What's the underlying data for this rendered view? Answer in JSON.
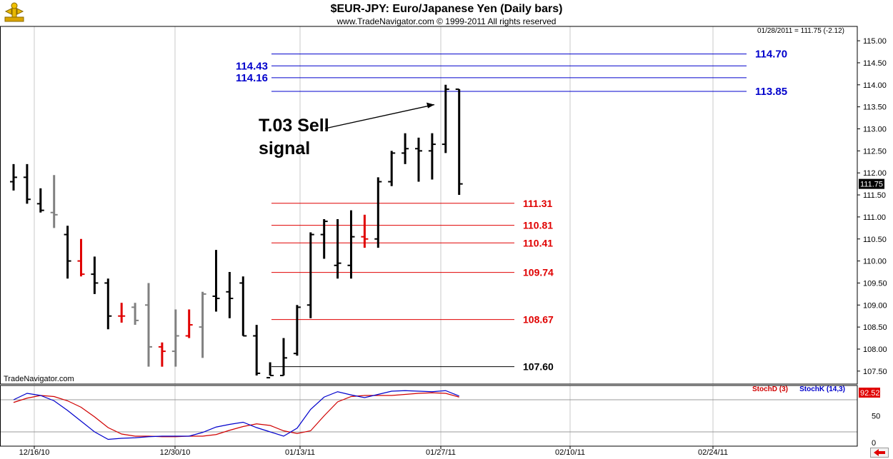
{
  "header": {
    "title": "$EUR-JPY:  Euro/Japanese Yen  (Daily bars)",
    "subtitle": "www.TradeNavigator.com © 1999-2011 All rights reserved",
    "quote": "01/28/2011 = 111.75 (-2.12)",
    "watermark": "TradeNavigator.com"
  },
  "colors": {
    "up_bar": "#000000",
    "down_bar": "#808080",
    "highlight_bar": "#e00000",
    "blue_level": "#0000cc",
    "red_level": "#e00000",
    "stoch_d": "#d00000",
    "stoch_k": "#0000cc"
  },
  "chart_data": {
    "type": "ohlc",
    "ylim": [
      107.35,
      115.1
    ],
    "yticks": [
      "107.50",
      "108.00",
      "108.50",
      "109.00",
      "109.50",
      "110.00",
      "110.50",
      "111.00",
      "111.50",
      "112.00",
      "112.50",
      "113.00",
      "113.50",
      "114.00",
      "114.50",
      "115.00"
    ],
    "xticks": [
      "12/16/10",
      "12/30/10",
      "01/13/11",
      "01/27/11",
      "02/10/11",
      "02/24/11"
    ],
    "last_price_label": "111.75",
    "bars": [
      {
        "o": 111.8,
        "h": 112.2,
        "l": 111.6,
        "c": 111.9,
        "color": "black"
      },
      {
        "o": 111.9,
        "h": 112.2,
        "l": 111.3,
        "c": 111.4,
        "color": "black"
      },
      {
        "o": 111.3,
        "h": 111.65,
        "l": 111.1,
        "c": 111.15,
        "color": "black"
      },
      {
        "o": 111.1,
        "h": 111.95,
        "l": 110.75,
        "c": 111.05,
        "color": "gray"
      },
      {
        "o": 110.6,
        "h": 110.8,
        "l": 109.6,
        "c": 110.0,
        "color": "black"
      },
      {
        "o": 110.0,
        "h": 110.5,
        "l": 109.65,
        "c": 109.7,
        "color": "red"
      },
      {
        "o": 109.7,
        "h": 110.1,
        "l": 109.25,
        "c": 109.5,
        "color": "black"
      },
      {
        "o": 109.5,
        "h": 109.6,
        "l": 108.45,
        "c": 108.75,
        "color": "black"
      },
      {
        "o": 108.75,
        "h": 109.05,
        "l": 108.6,
        "c": 108.75,
        "color": "red"
      },
      {
        "o": 108.95,
        "h": 109.05,
        "l": 108.55,
        "c": 108.65,
        "color": "gray"
      },
      {
        "o": 109.0,
        "h": 109.5,
        "l": 107.6,
        "c": 108.05,
        "color": "gray"
      },
      {
        "o": 108.05,
        "h": 108.15,
        "l": 107.6,
        "c": 107.95,
        "color": "red"
      },
      {
        "o": 107.95,
        "h": 108.9,
        "l": 107.6,
        "c": 108.3,
        "color": "gray"
      },
      {
        "o": 108.3,
        "h": 108.9,
        "l": 108.25,
        "c": 108.55,
        "color": "red"
      },
      {
        "o": 108.5,
        "h": 109.3,
        "l": 107.8,
        "c": 109.25,
        "color": "gray"
      },
      {
        "o": 109.2,
        "h": 110.25,
        "l": 108.85,
        "c": 109.15,
        "color": "black"
      },
      {
        "o": 109.3,
        "h": 109.75,
        "l": 108.7,
        "c": 109.15,
        "color": "black"
      },
      {
        "o": 109.5,
        "h": 109.65,
        "l": 108.3,
        "c": 108.3,
        "color": "black"
      },
      {
        "o": 108.3,
        "h": 108.55,
        "l": 107.4,
        "c": 107.45,
        "color": "black"
      },
      {
        "o": 107.35,
        "h": 107.7,
        "l": 107.4,
        "c": 107.4,
        "color": "black"
      },
      {
        "o": 107.4,
        "h": 108.25,
        "l": 107.4,
        "c": 107.8,
        "color": "black"
      },
      {
        "o": 107.9,
        "h": 109.0,
        "l": 107.85,
        "c": 108.95,
        "color": "black"
      },
      {
        "o": 109.0,
        "h": 110.65,
        "l": 108.7,
        "c": 110.6,
        "color": "black"
      },
      {
        "o": 110.6,
        "h": 110.95,
        "l": 110.05,
        "c": 110.9,
        "color": "black"
      },
      {
        "o": 109.9,
        "h": 110.95,
        "l": 109.6,
        "c": 109.95,
        "color": "black"
      },
      {
        "o": 109.9,
        "h": 111.15,
        "l": 109.6,
        "c": 110.55,
        "color": "black"
      },
      {
        "o": 110.55,
        "h": 111.05,
        "l": 110.3,
        "c": 110.5,
        "color": "red"
      },
      {
        "o": 110.5,
        "h": 111.9,
        "l": 110.3,
        "c": 111.8,
        "color": "black"
      },
      {
        "o": 111.8,
        "h": 112.5,
        "l": 111.7,
        "c": 112.45,
        "color": "black"
      },
      {
        "o": 112.45,
        "h": 112.9,
        "l": 112.2,
        "c": 112.55,
        "color": "black"
      },
      {
        "o": 112.55,
        "h": 112.8,
        "l": 111.8,
        "c": 112.5,
        "color": "black"
      },
      {
        "o": 112.5,
        "h": 112.9,
        "l": 111.85,
        "c": 112.65,
        "color": "black"
      },
      {
        "o": 112.65,
        "h": 114.0,
        "l": 112.45,
        "c": 113.9,
        "color": "black"
      },
      {
        "o": 113.9,
        "h": 113.9,
        "l": 111.5,
        "c": 111.75,
        "color": "black"
      }
    ],
    "levels": [
      {
        "value": 114.7,
        "label": "114.70",
        "color": "blue",
        "side": "right"
      },
      {
        "value": 114.43,
        "label": "114.43",
        "color": "blue",
        "side": "left"
      },
      {
        "value": 114.16,
        "label": "114.16",
        "color": "blue",
        "side": "left"
      },
      {
        "value": 113.85,
        "label": "113.85",
        "color": "blue",
        "side": "right"
      },
      {
        "value": 111.31,
        "label": "111.31",
        "color": "red",
        "side": "right"
      },
      {
        "value": 110.81,
        "label": "110.81",
        "color": "red",
        "side": "right"
      },
      {
        "value": 110.41,
        "label": "110.41",
        "color": "red",
        "side": "right"
      },
      {
        "value": 109.74,
        "label": "109.74",
        "color": "red",
        "side": "right"
      },
      {
        "value": 108.67,
        "label": "108.67",
        "color": "red",
        "side": "right"
      },
      {
        "value": 107.6,
        "label": "107.60",
        "color": "black",
        "side": "right"
      }
    ],
    "annotation": {
      "line1": "T.03 Sell",
      "line2": "signal",
      "points_to_value": 113.55
    },
    "indicator": {
      "name": "Stochastic",
      "ylim": [
        0,
        100
      ],
      "yticks": [
        "0",
        "50"
      ],
      "last_value_label": "92.52",
      "series": [
        {
          "name": "StochD (3)",
          "color": "red",
          "values": [
            75,
            83,
            88,
            86,
            78,
            66,
            48,
            28,
            16,
            12,
            12,
            11,
            11,
            12,
            12,
            15,
            23,
            30,
            35,
            32,
            22,
            17,
            22,
            50,
            76,
            86,
            88,
            88,
            88,
            90,
            92,
            93,
            92,
            85
          ]
        },
        {
          "name": "StochK (14,3)",
          "color": "blue",
          "values": [
            80,
            92,
            88,
            78,
            60,
            40,
            20,
            6,
            8,
            9,
            11,
            12,
            12,
            12,
            19,
            29,
            34,
            38,
            28,
            20,
            12,
            27,
            62,
            85,
            95,
            89,
            84,
            90,
            96,
            97,
            96,
            95,
            97,
            87
          ]
        }
      ]
    }
  }
}
